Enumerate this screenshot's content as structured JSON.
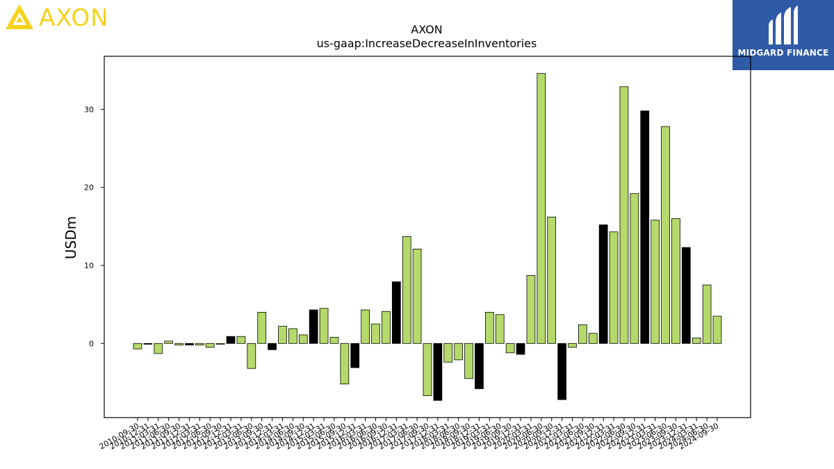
{
  "logos": {
    "left": {
      "text": "AXON",
      "icon": "axon-triangle-logo-icon",
      "color": "#f5d21c"
    },
    "right": {
      "text": "MIDGARD FINANCE",
      "icon": "midgard-m-logo-icon",
      "background": "#2f5aa6"
    }
  },
  "chart_data": {
    "type": "bar",
    "title": "AXON",
    "subtitle": "us-gaap:IncreaseDecreaseInInventories",
    "xlabel": "",
    "ylabel": "USDm",
    "ylim": [
      -9.5,
      36.8
    ],
    "yticks": [
      0,
      10,
      20,
      30
    ],
    "grid": false,
    "colors": {
      "q4": "#000000",
      "other": "#b5d96a",
      "edge": "#000000"
    },
    "categories": [
      "2010-09-30",
      "2010-12-31",
      "2011-03-31",
      "2011-06-30",
      "2011-09-30",
      "2011-12-31",
      "2012-03-31",
      "2012-06-30",
      "2012-09-30",
      "2012-12-31",
      "2013-03-31",
      "2013-06-30",
      "2013-09-30",
      "2013-12-31",
      "2014-03-31",
      "2014-06-30",
      "2014-09-30",
      "2014-12-31",
      "2015-03-31",
      "2015-06-30",
      "2015-09-30",
      "2015-12-31",
      "2016-03-31",
      "2016-06-30",
      "2016-09-30",
      "2016-12-31",
      "2017-03-31",
      "2017-06-30",
      "2017-09-30",
      "2017-12-31",
      "2018-03-31",
      "2018-06-30",
      "2018-09-30",
      "2018-12-31",
      "2019-03-31",
      "2019-06-30",
      "2019-09-30",
      "2019-12-31",
      "2020-03-31",
      "2020-06-30",
      "2020-09-30",
      "2020-12-31",
      "2021-03-31",
      "2021-06-30",
      "2021-09-30",
      "2021-12-31",
      "2022-03-31",
      "2022-06-30",
      "2022-09-30",
      "2022-12-31",
      "2023-03-31",
      "2023-06-30",
      "2023-09-30",
      "2023-12-31",
      "2024-03-31",
      "2024-06-30",
      "2024-09-30"
    ],
    "values": [
      -0.7,
      -0.1,
      -1.3,
      0.3,
      -0.2,
      -0.2,
      -0.2,
      -0.5,
      -0.1,
      0.9,
      0.9,
      -3.2,
      4.0,
      -0.8,
      2.2,
      1.9,
      1.1,
      4.3,
      4.5,
      0.8,
      -5.2,
      -3.1,
      4.3,
      2.5,
      4.1,
      7.9,
      13.7,
      12.1,
      -6.7,
      -7.3,
      -2.4,
      -2.1,
      -4.5,
      -5.8,
      4.0,
      3.7,
      -1.2,
      -1.4,
      8.7,
      34.6,
      16.2,
      -7.2,
      -0.5,
      2.4,
      1.3,
      15.2,
      14.3,
      32.9,
      19.2,
      29.8,
      15.8,
      27.8,
      16.0,
      12.3,
      0.7,
      7.5,
      3.5
    ],
    "highlight": [
      false,
      true,
      false,
      false,
      false,
      true,
      false,
      false,
      false,
      true,
      false,
      false,
      false,
      true,
      false,
      false,
      false,
      true,
      false,
      false,
      false,
      true,
      false,
      false,
      false,
      true,
      false,
      false,
      false,
      true,
      false,
      false,
      false,
      true,
      false,
      false,
      false,
      true,
      false,
      false,
      false,
      true,
      false,
      false,
      false,
      true,
      false,
      false,
      false,
      true,
      false,
      false,
      false,
      true,
      false,
      false,
      false
    ]
  }
}
